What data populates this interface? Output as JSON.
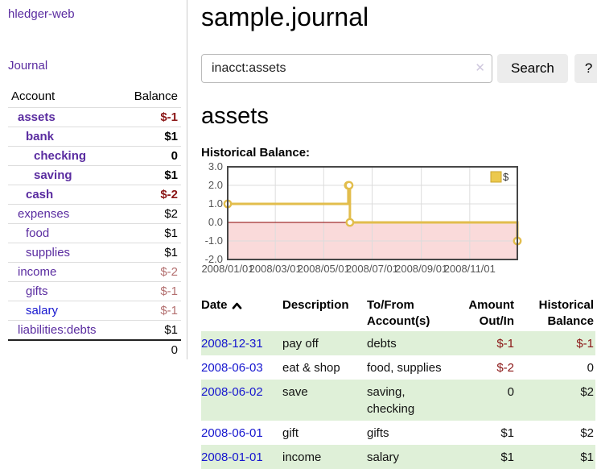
{
  "app": {
    "brand": "hledger-web",
    "nav_journal": "Journal"
  },
  "sidebar": {
    "col_account": "Account",
    "col_balance": "Balance",
    "accounts": [
      {
        "name": "assets",
        "indent": 1,
        "bold": true,
        "balance": "$-1"
      },
      {
        "name": "bank",
        "indent": 2,
        "bold": true,
        "balance": "$1"
      },
      {
        "name": "checking",
        "indent": 3,
        "bold": true,
        "balance": "0"
      },
      {
        "name": "saving",
        "indent": 3,
        "bold": true,
        "balance": "$1"
      },
      {
        "name": "cash",
        "indent": 2,
        "bold": true,
        "balance": "$-2"
      },
      {
        "name": "expenses",
        "indent": 1,
        "bold": false,
        "balance": "$2"
      },
      {
        "name": "food",
        "indent": 2,
        "bold": false,
        "balance": "$1"
      },
      {
        "name": "supplies",
        "indent": 2,
        "bold": false,
        "balance": "$1"
      },
      {
        "name": "income",
        "indent": 1,
        "bold": false,
        "balance": "$-2"
      },
      {
        "name": "gifts",
        "indent": 2,
        "bold": false,
        "balance": "$-1"
      },
      {
        "name": "salary",
        "indent": 2,
        "bold": false,
        "balance": "$-1",
        "unvisited": true
      },
      {
        "name": "liabilities:debts",
        "indent": 1,
        "bold": false,
        "balance": "$1"
      }
    ],
    "total": "0"
  },
  "header": {
    "title": "sample.journal"
  },
  "search": {
    "value": "inacct:assets",
    "clear_icon": "✕",
    "button_label": "Search",
    "help_label": "?"
  },
  "account_page": {
    "title": "assets",
    "chart_label": "Historical Balance:"
  },
  "chart_data": {
    "type": "line",
    "style": "steps",
    "title": "Historical Balance:",
    "legend": {
      "position": "top-right",
      "label": "$"
    },
    "xlim": [
      0,
      365
    ],
    "ylim": [
      -2,
      3
    ],
    "y_ticks": [
      3.0,
      2.0,
      1.0,
      0.0,
      -1.0,
      -2.0
    ],
    "x_ticks": [
      {
        "day": 0,
        "label": "2008/01/01"
      },
      {
        "day": 60,
        "label": "2008/03/01"
      },
      {
        "day": 121,
        "label": "2008/05/01"
      },
      {
        "day": 182,
        "label": "2008/07/01"
      },
      {
        "day": 244,
        "label": "2008/09/01"
      },
      {
        "day": 305,
        "label": "2008/11/01"
      }
    ],
    "series": [
      {
        "name": "$",
        "color": "#e2bd4c",
        "points": [
          {
            "date": "2008-01-01",
            "day": 0,
            "value": 1
          },
          {
            "date": "2008-06-01",
            "day": 152,
            "value": 2
          },
          {
            "date": "2008-06-02",
            "day": 153,
            "value": 2
          },
          {
            "date": "2008-06-03",
            "day": 154,
            "value": 0
          },
          {
            "date": "2008-12-31",
            "day": 365,
            "value": -1
          }
        ]
      }
    ],
    "grid": true,
    "negative_region_color": "#fadada",
    "zero_line_color": "#8b0000",
    "border_color": "#474747"
  },
  "register": {
    "columns": {
      "date": "Date",
      "description": "Description",
      "accounts": "To/From Account(s)",
      "amount": "Amount Out/In",
      "balance": "Historical Balance"
    },
    "sort": "ascending",
    "rows": [
      {
        "date": "2008-12-31",
        "description": "pay off",
        "accounts": "debts",
        "amount": "$-1",
        "balance": "$-1"
      },
      {
        "date": "2008-06-03",
        "description": "eat & shop",
        "accounts": "food, supplies",
        "amount": "$-2",
        "balance": "0"
      },
      {
        "date": "2008-06-02",
        "description": "save",
        "accounts": "saving, checking",
        "amount": "0",
        "balance": "$2"
      },
      {
        "date": "2008-06-01",
        "description": "gift",
        "accounts": "gifts",
        "amount": "$1",
        "balance": "$2"
      },
      {
        "date": "2008-01-01",
        "description": "income",
        "accounts": "salary",
        "amount": "$1",
        "balance": "$1"
      }
    ]
  }
}
